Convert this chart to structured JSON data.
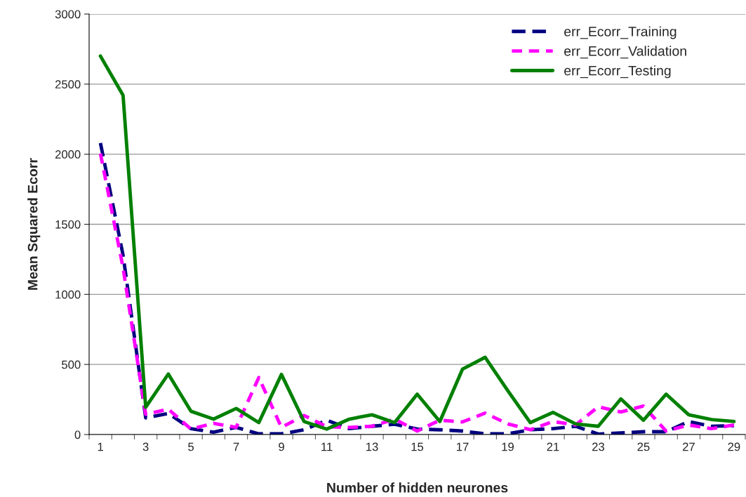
{
  "chart_data": {
    "type": "line",
    "xlabel": "Number of hidden neurones",
    "ylabel": "Mean Squared Ecorr",
    "categories": [
      "1",
      null,
      "3",
      null,
      "5",
      null,
      "7",
      null,
      "9",
      null,
      "11",
      null,
      "13",
      null,
      "15",
      null,
      "17",
      null,
      "19",
      null,
      "21",
      null,
      "23",
      null,
      "25",
      null,
      "27",
      null,
      "29"
    ],
    "series": [
      {
        "name": "err_Ecorr_Training",
        "color": "#000080",
        "line_style": "dashed",
        "values": [
          2080,
          1280,
          119,
          150,
          42,
          17,
          51,
          5,
          5,
          34,
          102,
          42,
          59,
          73,
          39,
          34,
          25,
          5,
          5,
          34,
          42,
          59,
          3,
          12,
          20,
          20,
          93,
          59,
          63
        ]
      },
      {
        "name": "err_Ecorr_Validation",
        "color": "#ff00ff",
        "line_style": "dotted",
        "values": [
          2005,
          1190,
          144,
          181,
          39,
          80,
          51,
          407,
          51,
          136,
          56,
          51,
          59,
          110,
          25,
          102,
          90,
          153,
          76,
          34,
          93,
          68,
          198,
          161,
          203,
          25,
          68,
          42,
          68
        ]
      },
      {
        "name": "err_Ecorr_Testing",
        "color": "#008000",
        "line_style": "solid",
        "values": [
          2700,
          2420,
          195,
          432,
          166,
          110,
          186,
          85,
          429,
          93,
          39,
          110,
          141,
          85,
          288,
          93,
          466,
          551,
          314,
          85,
          158,
          76,
          59,
          254,
          102,
          288,
          141,
          107,
          93
        ]
      }
    ],
    "ylim": [
      0,
      3000
    ],
    "yticks": [
      0,
      500,
      1000,
      1500,
      2000,
      2500,
      3000
    ],
    "grid": "y",
    "legend": "top right",
    "marker": "none"
  }
}
